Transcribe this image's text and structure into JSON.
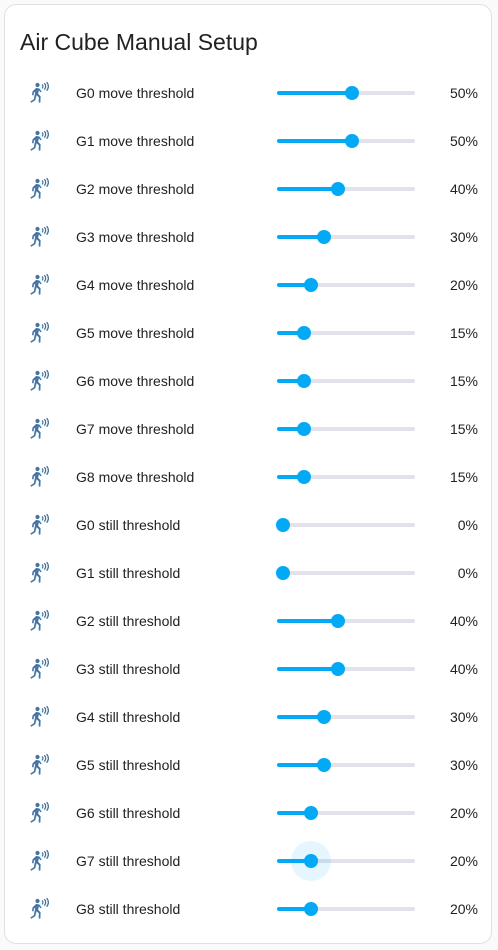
{
  "card": {
    "title": "Air Cube Manual Setup"
  },
  "accent_color": "#03a9f4",
  "icon_color": "#44739e",
  "rows": [
    {
      "label": "G0 move threshold",
      "value": "50%",
      "level": 50,
      "icon": "motion-sensor-icon"
    },
    {
      "label": "G1 move threshold",
      "value": "50%",
      "level": 50,
      "icon": "motion-sensor-icon"
    },
    {
      "label": "G2 move threshold",
      "value": "40%",
      "level": 40,
      "icon": "motion-sensor-icon"
    },
    {
      "label": "G3 move threshold",
      "value": "30%",
      "level": 30,
      "icon": "motion-sensor-icon"
    },
    {
      "label": "G4 move threshold",
      "value": "20%",
      "level": 20,
      "icon": "motion-sensor-icon"
    },
    {
      "label": "G5 move threshold",
      "value": "15%",
      "level": 15,
      "icon": "motion-sensor-icon"
    },
    {
      "label": "G6 move threshold",
      "value": "15%",
      "level": 15,
      "icon": "motion-sensor-icon"
    },
    {
      "label": "G7 move threshold",
      "value": "15%",
      "level": 15,
      "icon": "motion-sensor-icon"
    },
    {
      "label": "G8 move threshold",
      "value": "15%",
      "level": 15,
      "icon": "motion-sensor-icon"
    },
    {
      "label": "G0 still threshold",
      "value": "0%",
      "level": 0,
      "icon": "motion-sensor-icon"
    },
    {
      "label": "G1 still threshold",
      "value": "0%",
      "level": 0,
      "icon": "motion-sensor-icon"
    },
    {
      "label": "G2 still threshold",
      "value": "40%",
      "level": 40,
      "icon": "motion-sensor-icon"
    },
    {
      "label": "G3 still threshold",
      "value": "40%",
      "level": 40,
      "icon": "motion-sensor-icon"
    },
    {
      "label": "G4 still threshold",
      "value": "30%",
      "level": 30,
      "icon": "motion-sensor-icon"
    },
    {
      "label": "G5 still threshold",
      "value": "30%",
      "level": 30,
      "icon": "motion-sensor-icon"
    },
    {
      "label": "G6 still threshold",
      "value": "20%",
      "level": 20,
      "icon": "motion-sensor-icon"
    },
    {
      "label": "G7 still threshold",
      "value": "20%",
      "level": 20,
      "icon": "motion-sensor-icon",
      "focused": true
    },
    {
      "label": "G8 still threshold",
      "value": "20%",
      "level": 20,
      "icon": "motion-sensor-icon"
    }
  ]
}
